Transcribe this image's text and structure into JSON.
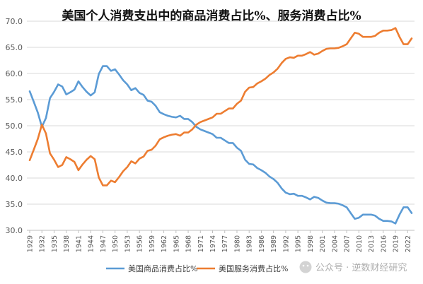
{
  "chart_data": {
    "type": "line",
    "title": "美国个人消费支出中的商品消费占比%、服务消费占比%",
    "xlabel": "",
    "ylabel": "",
    "ylim": [
      30,
      70
    ],
    "yticks": [
      "30.0",
      "35.0",
      "40.0",
      "45.0",
      "50.0",
      "55.0",
      "60.0",
      "65.0",
      "70.0"
    ],
    "x": [
      1929,
      1930,
      1931,
      1932,
      1933,
      1934,
      1935,
      1936,
      1937,
      1938,
      1939,
      1940,
      1941,
      1942,
      1943,
      1944,
      1945,
      1946,
      1947,
      1948,
      1949,
      1950,
      1951,
      1952,
      1953,
      1954,
      1955,
      1956,
      1957,
      1958,
      1959,
      1960,
      1961,
      1962,
      1963,
      1964,
      1965,
      1966,
      1967,
      1968,
      1969,
      1970,
      1971,
      1972,
      1973,
      1974,
      1975,
      1976,
      1977,
      1978,
      1979,
      1980,
      1981,
      1982,
      1983,
      1984,
      1985,
      1986,
      1987,
      1988,
      1989,
      1990,
      1991,
      1992,
      1993,
      1994,
      1995,
      1996,
      1997,
      1998,
      1999,
      2000,
      2001,
      2002,
      2003,
      2004,
      2005,
      2006,
      2007,
      2008,
      2009,
      2010,
      2011,
      2012,
      2013,
      2014,
      2015,
      2016,
      2017,
      2018,
      2019,
      2020,
      2021,
      2022,
      2023
    ],
    "xtick_labels": [
      "1929",
      "1932",
      "1935",
      "1938",
      "1941",
      "1944",
      "1947",
      "1950",
      "1953",
      "1956",
      "1959",
      "1962",
      "1965",
      "1968",
      "1971",
      "1974",
      "1977",
      "1980",
      "1983",
      "1986",
      "1989",
      "1992",
      "1995",
      "1998",
      "2001",
      "2004",
      "2007",
      "2010",
      "2013",
      "2016",
      "2019",
      "2022"
    ],
    "series": [
      {
        "name": "美国商品消费占比%",
        "color": "#5b9bd5",
        "values": [
          56.6,
          54.6,
          52.5,
          49.8,
          51.5,
          55.3,
          56.5,
          57.9,
          57.5,
          56.0,
          56.4,
          56.9,
          58.5,
          57.4,
          56.5,
          55.8,
          56.4,
          59.9,
          61.4,
          61.4,
          60.5,
          60.8,
          59.8,
          58.7,
          57.9,
          56.8,
          57.2,
          56.3,
          55.9,
          54.8,
          54.6,
          53.8,
          52.6,
          52.2,
          51.9,
          51.7,
          51.6,
          51.9,
          51.3,
          51.3,
          50.7,
          49.8,
          49.3,
          49.0,
          48.7,
          48.4,
          47.7,
          47.7,
          47.2,
          46.7,
          46.7,
          45.8,
          45.2,
          43.5,
          42.7,
          42.6,
          41.9,
          41.5,
          41.0,
          40.3,
          39.8,
          39.1,
          38.0,
          37.2,
          36.9,
          37.0,
          36.6,
          36.6,
          36.3,
          35.9,
          36.4,
          36.2,
          35.7,
          35.3,
          35.2,
          35.2,
          35.1,
          34.8,
          34.4,
          33.3,
          32.2,
          32.4,
          33.0,
          33.0,
          33.0,
          32.8,
          32.2,
          31.8,
          31.8,
          31.7,
          31.3,
          33.0,
          34.4,
          34.4,
          33.3
        ]
      },
      {
        "name": "美国服务消费占比%",
        "color": "#ed7d31",
        "values": [
          43.4,
          45.4,
          47.5,
          50.2,
          48.5,
          44.7,
          43.5,
          42.1,
          42.5,
          44.0,
          43.6,
          43.1,
          41.5,
          42.6,
          43.5,
          44.2,
          43.6,
          40.1,
          38.6,
          38.6,
          39.5,
          39.2,
          40.2,
          41.3,
          42.1,
          43.2,
          42.8,
          43.7,
          44.1,
          45.2,
          45.4,
          46.2,
          47.4,
          47.8,
          48.1,
          48.3,
          48.4,
          48.1,
          48.7,
          48.7,
          49.3,
          50.2,
          50.7,
          51.0,
          51.3,
          51.6,
          52.3,
          52.3,
          52.8,
          53.3,
          53.3,
          54.2,
          54.8,
          56.5,
          57.3,
          57.4,
          58.1,
          58.5,
          59.0,
          59.7,
          60.2,
          60.9,
          62.0,
          62.8,
          63.1,
          63.0,
          63.4,
          63.4,
          63.7,
          64.1,
          63.6,
          63.8,
          64.3,
          64.7,
          64.8,
          64.8,
          64.9,
          65.2,
          65.6,
          66.7,
          67.8,
          67.6,
          67.0,
          67.0,
          67.0,
          67.2,
          67.8,
          68.2,
          68.2,
          68.3,
          68.7,
          67.0,
          65.6,
          65.6,
          66.7
        ]
      }
    ],
    "legend": "bottom",
    "grid": true
  },
  "watermark": {
    "icon": "wechat-official-account-icon",
    "text": "公众号 · 逆数财经研究"
  }
}
